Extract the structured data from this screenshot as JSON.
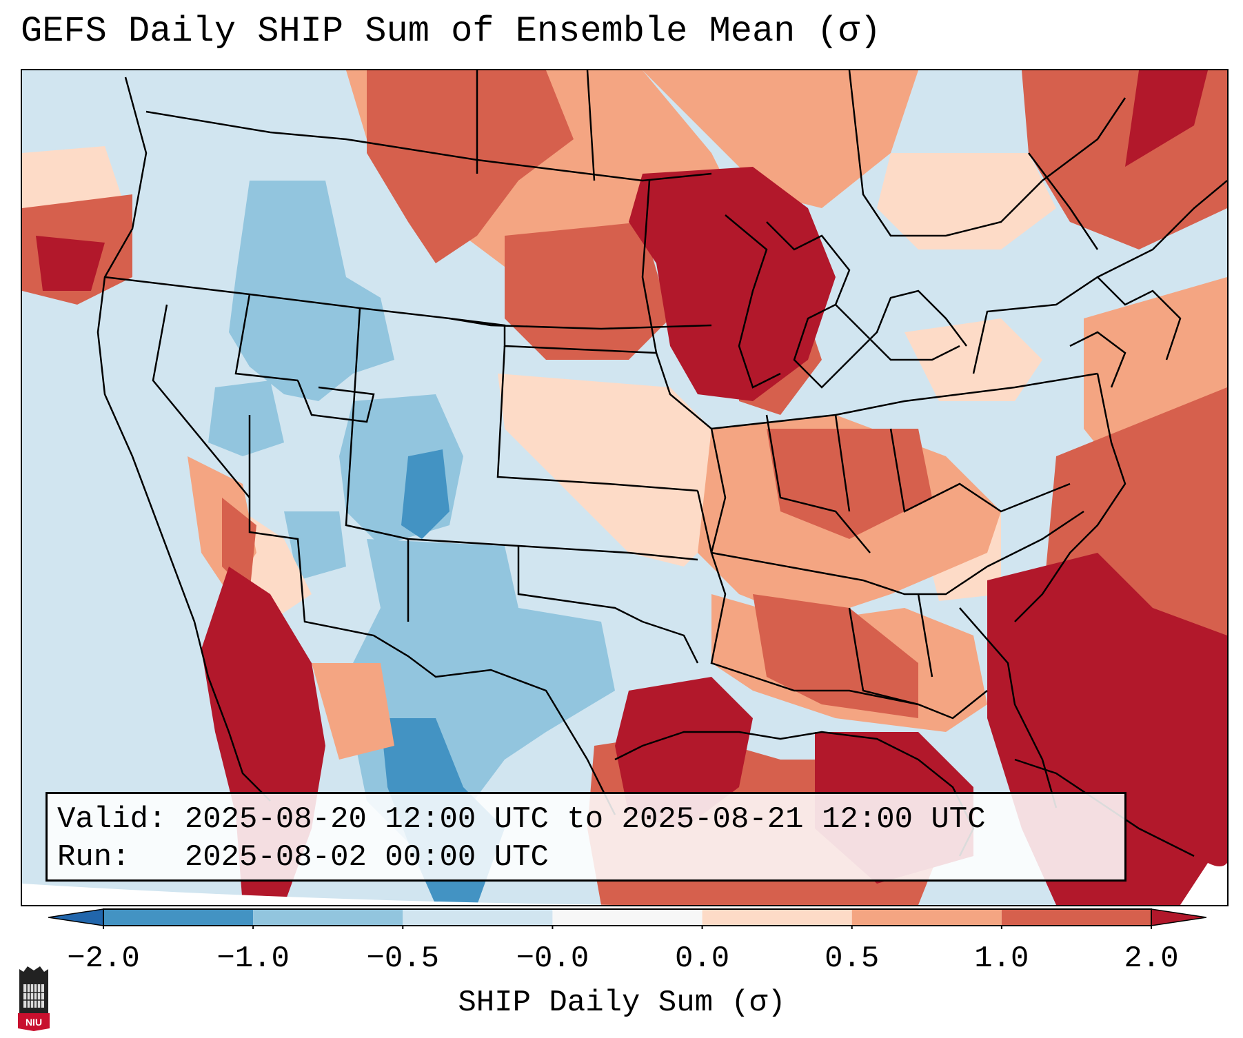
{
  "title": "GEFS Daily SHIP Sum of Ensemble Mean (σ)",
  "info": {
    "valid_line": "Valid: 2025-08-20 12:00 UTC to 2025-08-21 12:00 UTC",
    "run_line": "Run:   2025-08-02 00:00 UTC"
  },
  "colorbar": {
    "label": "SHIP Daily Sum (σ)",
    "ticks": [
      "−2.0",
      "−1.0",
      "−0.5",
      "−0.0",
      "0.0",
      "0.5",
      "1.0",
      "2.0"
    ],
    "colors": [
      "#4393c3",
      "#92c5de",
      "#d1e5f0",
      "#f7f7f7",
      "#fddbc7",
      "#f4a582",
      "#d6604d"
    ],
    "extend_low_color": "#2166ac",
    "extend_high_color": "#b2182b"
  },
  "logo": {
    "text": "NIU",
    "icon": "niu-tower-icon"
  }
}
